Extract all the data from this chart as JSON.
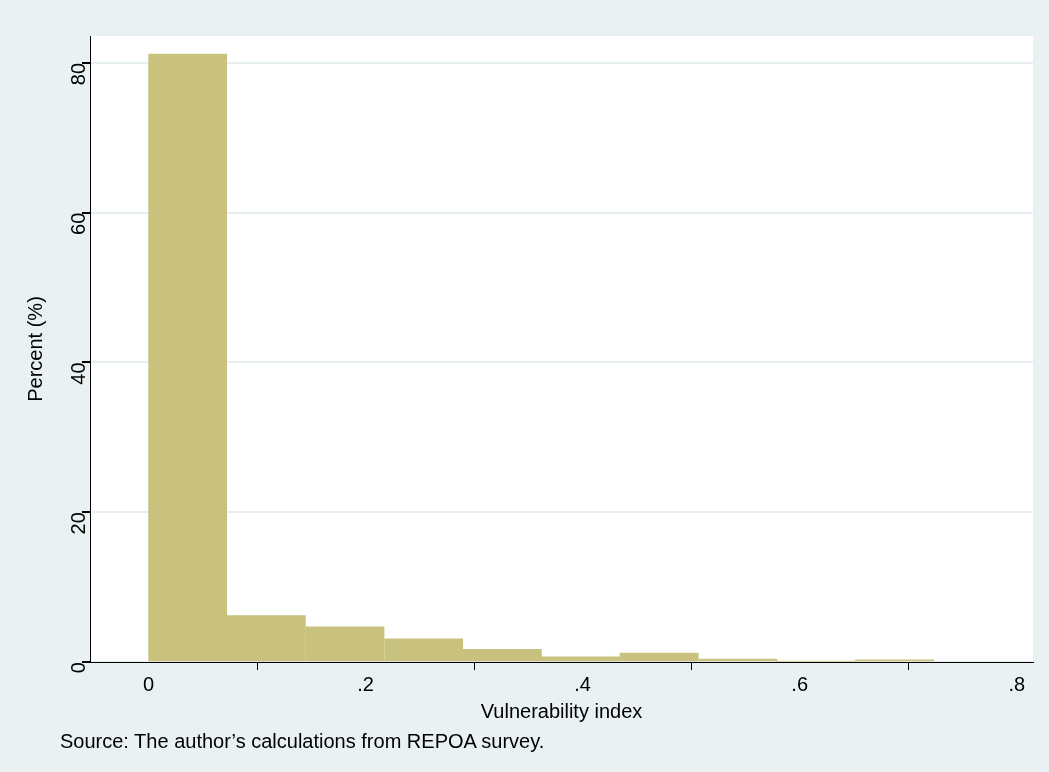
{
  "chart_data": {
    "type": "histogram",
    "xlabel": "Vulnerability index",
    "ylabel": "Percent (%)",
    "annotations": [
      "Source: The author’s calculations from REPOA survey."
    ],
    "bins": [
      0,
      0.072,
      0.145,
      0.217,
      0.29,
      0.362,
      0.434,
      0.507,
      0.579,
      0.651,
      0.724
    ],
    "values": [
      81.2,
      6.2,
      4.7,
      3.1,
      1.7,
      0.7,
      1.2,
      0.4,
      0.1,
      0.3
    ],
    "color": "#c9c27f",
    "xlim": [
      -0.054,
      0.815
    ],
    "xticks": [
      {
        "value": 0,
        "label": "0"
      },
      {
        "value": 0.2,
        "label": ".2"
      },
      {
        "value": 0.4,
        "label": ".4"
      },
      {
        "value": 0.6,
        "label": ".6"
      },
      {
        "value": 0.8,
        "label": ".8"
      }
    ],
    "ylim": [
      0,
      83.6
    ],
    "yticks": [
      0,
      20,
      40,
      60,
      80
    ],
    "grid": "y",
    "legend": false
  }
}
